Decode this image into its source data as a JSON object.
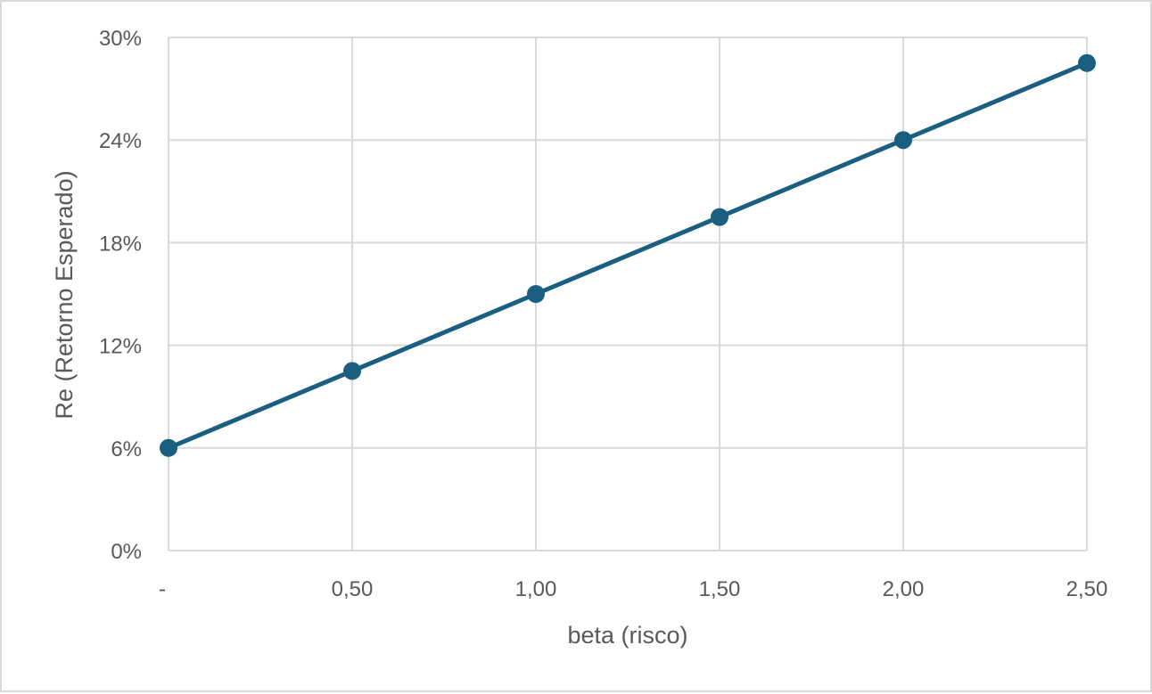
{
  "chart_data": {
    "type": "line",
    "title": "",
    "xlabel": "beta (risco)",
    "ylabel": "Re (Retorno Esperado)",
    "x": [
      0,
      0.5,
      1.0,
      1.5,
      2.0,
      2.5
    ],
    "x_tick_labels": [
      "-",
      "0,50",
      "1,00",
      "1,50",
      "2,00",
      "2,50"
    ],
    "y_tick_labels": [
      "0%",
      "6%",
      "12%",
      "18%",
      "24%",
      "30%"
    ],
    "y_ticks": [
      0,
      6,
      12,
      18,
      24,
      30
    ],
    "xlim": [
      0,
      2.5
    ],
    "ylim": [
      0,
      30
    ],
    "grid": true,
    "legend": "none",
    "series": [
      {
        "values": [
          6.0,
          10.5,
          15.0,
          19.5,
          24.0,
          28.5
        ],
        "color": "#1a5e80"
      }
    ],
    "colors": {
      "line": "#1a5e80",
      "grid": "#d9d9d9",
      "text": "#595959"
    }
  }
}
